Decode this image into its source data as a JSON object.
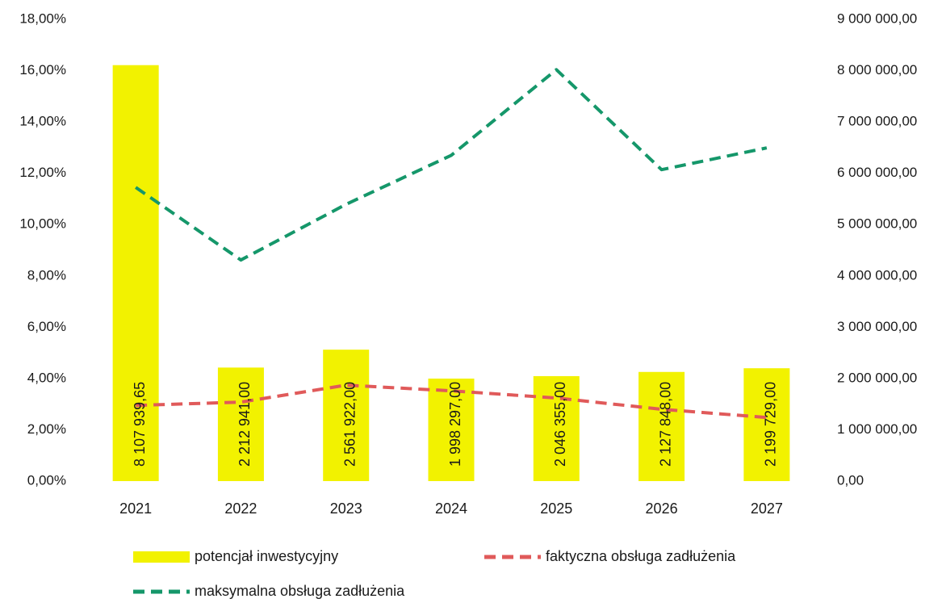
{
  "chart_data": {
    "type": "combo",
    "categories": [
      "2021",
      "2022",
      "2023",
      "2024",
      "2025",
      "2026",
      "2027"
    ],
    "series": [
      {
        "name": "potencjał inwestycyjny",
        "type": "bar",
        "axis": "y2",
        "color": "#f2f200",
        "values": [
          8107939.65,
          2212941,
          2561922,
          1998297,
          2046355,
          2127848,
          2199729
        ],
        "value_labels": [
          "8 107 939,65",
          "2 212 941,00",
          "2 561 922,00",
          "1 998 297,00",
          "2 046 355,00",
          "2 127 848,00",
          "2 199 729,00"
        ]
      },
      {
        "name": "faktyczna obsługa zadłużenia",
        "type": "line",
        "axis": "y",
        "color": "#e05a5a",
        "linestyle": "dashed",
        "values": [
          2.95,
          3.08,
          3.74,
          3.52,
          3.24,
          2.8,
          2.48
        ]
      },
      {
        "name": "maksymalna obsługa zadłużenia",
        "type": "line",
        "axis": "y",
        "color": "#15976a",
        "linestyle": "dashed",
        "values": [
          11.45,
          8.62,
          10.79,
          12.7,
          16.04,
          12.14,
          12.99
        ]
      }
    ],
    "ylim": [
      0,
      18
    ],
    "yticks": [
      {
        "value": 0,
        "label": "0,00%"
      },
      {
        "value": 2,
        "label": "2,00%"
      },
      {
        "value": 4,
        "label": "4,00%"
      },
      {
        "value": 6,
        "label": "6,00%"
      },
      {
        "value": 8,
        "label": "8,00%"
      },
      {
        "value": 10,
        "label": "10,00%"
      },
      {
        "value": 12,
        "label": "12,00%"
      },
      {
        "value": 14,
        "label": "14,00%"
      },
      {
        "value": 16,
        "label": "16,00%"
      },
      {
        "value": 18,
        "label": "18,00%"
      }
    ],
    "y2lim": [
      0,
      9000000
    ],
    "y2ticks": [
      {
        "value": 0,
        "label": "0,00"
      },
      {
        "value": 1000000,
        "label": "1 000 000,00"
      },
      {
        "value": 2000000,
        "label": "2 000 000,00"
      },
      {
        "value": 3000000,
        "label": "3 000 000,00"
      },
      {
        "value": 4000000,
        "label": "4 000 000,00"
      },
      {
        "value": 5000000,
        "label": "5 000 000,00"
      },
      {
        "value": 6000000,
        "label": "6 000 000,00"
      },
      {
        "value": 7000000,
        "label": "7 000 000,00"
      },
      {
        "value": 8000000,
        "label": "8 000 000,00"
      },
      {
        "value": 9000000,
        "label": "9 000 000,00"
      }
    ],
    "grid": false,
    "legend": "bottom"
  }
}
